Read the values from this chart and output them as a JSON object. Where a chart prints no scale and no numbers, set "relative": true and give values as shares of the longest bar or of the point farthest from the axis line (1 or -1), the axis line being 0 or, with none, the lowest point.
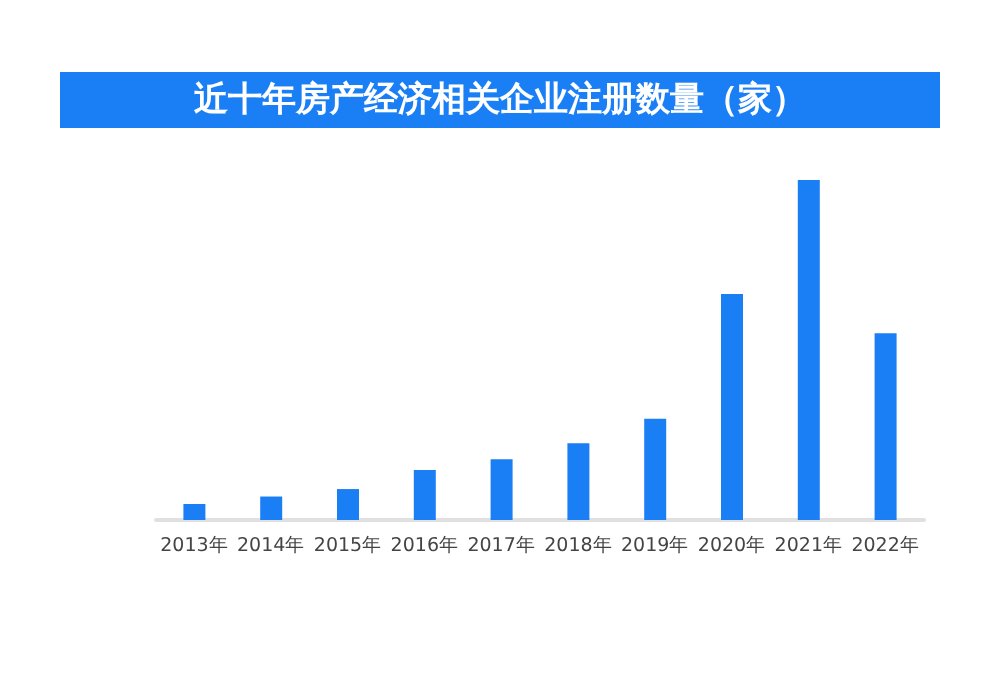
{
  "chart_data": {
    "type": "bar",
    "title": "近十年房产经济相关企业注册数量（家）",
    "categories": [
      "2013年",
      "2014年",
      "2015年",
      "2016年",
      "2017年",
      "2018年",
      "2019年",
      "2020年",
      "2021年",
      "2022年"
    ],
    "values": [
      0.047,
      0.069,
      0.091,
      0.147,
      0.179,
      0.226,
      0.298,
      0.665,
      1,
      0.549
    ],
    "color": "#1a7ff5",
    "relative": true,
    "grid": false
  }
}
